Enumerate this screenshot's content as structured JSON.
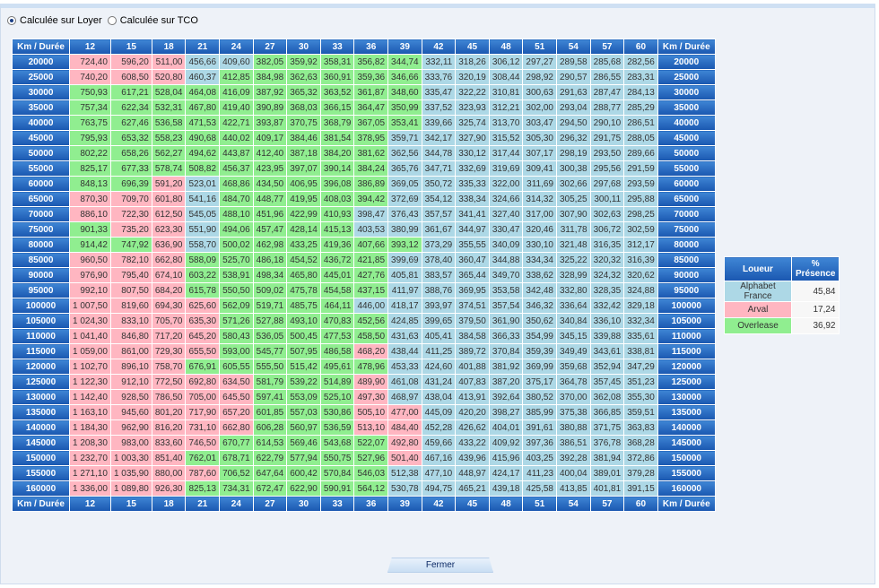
{
  "radios": [
    {
      "label": "Calculée sur Loyer",
      "selected": true
    },
    {
      "label": "Calculée sur TCO",
      "selected": false
    }
  ],
  "table": {
    "corner_label": "Km / Durée",
    "durations": [
      "12",
      "15",
      "18",
      "21",
      "24",
      "27",
      "30",
      "33",
      "36",
      "39",
      "42",
      "45",
      "48",
      "51",
      "54",
      "57",
      "60"
    ],
    "colors": {
      "A": "#add8e6",
      "R": "#ffb6c1",
      "O": "#90ee90"
    },
    "rows": [
      {
        "km": "20000",
        "v": [
          "724,40",
          "596,20",
          "511,00",
          "456,66",
          "409,60",
          "382,05",
          "359,92",
          "358,31",
          "356,82",
          "344,74",
          "332,11",
          "318,26",
          "306,12",
          "297,27",
          "289,58",
          "285,68",
          "282,56"
        ],
        "c": "RRRAAOOOOOAAAAAAA"
      },
      {
        "km": "25000",
        "v": [
          "740,20",
          "608,50",
          "520,80",
          "460,37",
          "412,85",
          "384,98",
          "362,63",
          "360,91",
          "359,36",
          "346,66",
          "333,76",
          "320,19",
          "308,44",
          "298,92",
          "290,57",
          "286,55",
          "283,31"
        ],
        "c": "RRRAOOOOOOAAAAAAA"
      },
      {
        "km": "30000",
        "v": [
          "750,93",
          "617,21",
          "528,04",
          "464,08",
          "416,09",
          "387,92",
          "365,32",
          "363,52",
          "361,87",
          "348,60",
          "335,47",
          "322,22",
          "310,81",
          "300,63",
          "291,63",
          "287,47",
          "284,13"
        ],
        "c": "OOOOOOOOOOAAAAAAA"
      },
      {
        "km": "35000",
        "v": [
          "757,34",
          "622,34",
          "532,31",
          "467,80",
          "419,40",
          "390,89",
          "368,03",
          "366,15",
          "364,47",
          "350,99",
          "337,52",
          "323,93",
          "312,21",
          "302,00",
          "293,04",
          "288,77",
          "285,29"
        ],
        "c": "OOOOOOOOOOAAAAAAA"
      },
      {
        "km": "40000",
        "v": [
          "763,75",
          "627,46",
          "536,58",
          "471,53",
          "422,71",
          "393,87",
          "370,75",
          "368,79",
          "367,05",
          "353,41",
          "339,66",
          "325,74",
          "313,70",
          "303,47",
          "294,50",
          "290,10",
          "286,51"
        ],
        "c": "OOOOOOOOOOAAAAAAA"
      },
      {
        "km": "45000",
        "v": [
          "795,93",
          "653,32",
          "558,23",
          "490,68",
          "440,02",
          "409,17",
          "384,46",
          "381,54",
          "378,95",
          "359,71",
          "342,17",
          "327,90",
          "315,52",
          "305,30",
          "296,32",
          "291,75",
          "288,05"
        ],
        "c": "OOOOOOOOOAAAAAAAA"
      },
      {
        "km": "50000",
        "v": [
          "802,22",
          "658,26",
          "562,27",
          "494,62",
          "443,87",
          "412,40",
          "387,18",
          "384,20",
          "381,62",
          "362,56",
          "344,78",
          "330,12",
          "317,44",
          "307,17",
          "298,19",
          "293,50",
          "289,66"
        ],
        "c": "OOOOOOOOOAAAAAAAA"
      },
      {
        "km": "55000",
        "v": [
          "825,17",
          "677,33",
          "578,74",
          "508,82",
          "456,37",
          "423,95",
          "397,07",
          "390,14",
          "384,24",
          "365,76",
          "347,71",
          "332,69",
          "319,69",
          "309,41",
          "300,38",
          "295,56",
          "291,59"
        ],
        "c": "OOOOOOOOOAAAAAAAA"
      },
      {
        "km": "60000",
        "v": [
          "848,13",
          "696,39",
          "591,20",
          "523,01",
          "468,86",
          "434,50",
          "406,95",
          "396,08",
          "386,89",
          "369,05",
          "350,72",
          "335,33",
          "322,00",
          "311,69",
          "302,66",
          "297,68",
          "293,59"
        ],
        "c": "OORAOOOOOAAAAAAAA"
      },
      {
        "km": "65000",
        "v": [
          "870,30",
          "709,70",
          "601,80",
          "541,16",
          "484,70",
          "448,77",
          "419,95",
          "408,03",
          "394,42",
          "372,69",
          "354,12",
          "338,34",
          "324,66",
          "314,32",
          "305,25",
          "300,11",
          "295,88"
        ],
        "c": "RRRAOOOOOAAAAAAAA"
      },
      {
        "km": "70000",
        "v": [
          "886,10",
          "722,30",
          "612,50",
          "545,05",
          "488,10",
          "451,96",
          "422,99",
          "410,93",
          "398,47",
          "376,43",
          "357,57",
          "341,41",
          "327,40",
          "317,00",
          "307,90",
          "302,63",
          "298,25"
        ],
        "c": "RRRAOOOOAAAAAAAAA"
      },
      {
        "km": "75000",
        "v": [
          "901,33",
          "735,20",
          "623,30",
          "551,90",
          "494,06",
          "457,47",
          "428,14",
          "415,13",
          "403,53",
          "380,99",
          "361,67",
          "344,97",
          "330,47",
          "320,46",
          "311,78",
          "306,72",
          "302,59"
        ],
        "c": "ORRAOOOOAAAAAAAAA"
      },
      {
        "km": "80000",
        "v": [
          "914,42",
          "747,92",
          "636,90",
          "558,70",
          "500,02",
          "462,98",
          "433,25",
          "419,36",
          "407,66",
          "393,12",
          "373,29",
          "355,55",
          "340,09",
          "330,10",
          "321,48",
          "316,35",
          "312,17"
        ],
        "c": "OORAOOOOOOAAAAAAA"
      },
      {
        "km": "85000",
        "v": [
          "960,50",
          "782,10",
          "662,80",
          "588,09",
          "525,70",
          "486,18",
          "454,52",
          "436,72",
          "421,85",
          "399,69",
          "378,40",
          "360,47",
          "344,88",
          "334,34",
          "325,22",
          "320,32",
          "316,39"
        ],
        "c": "RRROOOOOOAAAAAAAA"
      },
      {
        "km": "90000",
        "v": [
          "976,90",
          "795,40",
          "674,10",
          "603,22",
          "538,91",
          "498,34",
          "465,80",
          "445,01",
          "427,76",
          "405,81",
          "383,57",
          "365,44",
          "349,70",
          "338,62",
          "328,99",
          "324,32",
          "320,62"
        ],
        "c": "RRROOOOOOAAAAAAAA"
      },
      {
        "km": "95000",
        "v": [
          "992,10",
          "807,50",
          "684,20",
          "615,78",
          "550,50",
          "509,02",
          "475,78",
          "454,58",
          "437,15",
          "411,97",
          "388,76",
          "369,95",
          "353,58",
          "342,48",
          "332,80",
          "328,35",
          "324,88"
        ],
        "c": "RRROOOOOOAAAAAAAA"
      },
      {
        "km": "100000",
        "v": [
          "1 007,50",
          "819,60",
          "694,30",
          "625,60",
          "562,09",
          "519,71",
          "485,75",
          "464,11",
          "446,00",
          "418,17",
          "393,97",
          "374,51",
          "357,54",
          "346,32",
          "336,64",
          "332,42",
          "329,18"
        ],
        "c": "RRRROOOOAAAAAAAAA"
      },
      {
        "km": "105000",
        "v": [
          "1 024,30",
          "833,10",
          "705,70",
          "635,30",
          "571,26",
          "527,88",
          "493,10",
          "470,83",
          "452,56",
          "424,85",
          "399,65",
          "379,50",
          "361,90",
          "350,62",
          "340,84",
          "336,10",
          "332,34"
        ],
        "c": "RRRROOOOOAAAAAAAA"
      },
      {
        "km": "110000",
        "v": [
          "1 041,40",
          "846,80",
          "717,20",
          "645,20",
          "580,43",
          "536,05",
          "500,45",
          "477,53",
          "458,50",
          "431,63",
          "405,41",
          "384,58",
          "366,33",
          "354,99",
          "345,15",
          "339,88",
          "335,61"
        ],
        "c": "RRRROOOOOAAAAAAAA"
      },
      {
        "km": "115000",
        "v": [
          "1 059,00",
          "861,00",
          "729,30",
          "655,50",
          "593,00",
          "545,77",
          "507,95",
          "486,58",
          "468,20",
          "438,44",
          "411,25",
          "389,72",
          "370,84",
          "359,39",
          "349,49",
          "343,61",
          "338,81"
        ],
        "c": "RRRROOOORAAAAAAAA"
      },
      {
        "km": "120000",
        "v": [
          "1 102,70",
          "896,10",
          "758,70",
          "676,91",
          "605,55",
          "555,50",
          "515,42",
          "495,61",
          "478,96",
          "453,33",
          "424,60",
          "401,88",
          "381,92",
          "369,99",
          "359,68",
          "352,94",
          "347,29"
        ],
        "c": "RRROOOOOOAAAAAAAA"
      },
      {
        "km": "125000",
        "v": [
          "1 122,30",
          "912,10",
          "772,50",
          "692,80",
          "634,50",
          "581,79",
          "539,22",
          "514,89",
          "489,90",
          "461,08",
          "431,24",
          "407,83",
          "387,20",
          "375,17",
          "364,78",
          "357,45",
          "351,23"
        ],
        "c": "RRRRROOORAAAAAAAA"
      },
      {
        "km": "130000",
        "v": [
          "1 142,40",
          "928,50",
          "786,50",
          "705,00",
          "645,50",
          "597,41",
          "553,09",
          "525,10",
          "497,30",
          "468,97",
          "438,04",
          "413,91",
          "392,64",
          "380,52",
          "370,00",
          "362,08",
          "355,30"
        ],
        "c": "RRRRROOORAAAAAAAA"
      },
      {
        "km": "135000",
        "v": [
          "1 163,10",
          "945,60",
          "801,20",
          "717,90",
          "657,20",
          "601,85",
          "557,03",
          "530,86",
          "505,10",
          "477,00",
          "445,09",
          "420,20",
          "398,27",
          "385,99",
          "375,38",
          "366,85",
          "359,51"
        ],
        "c": "RRRRROOORRAAAAAAA"
      },
      {
        "km": "140000",
        "v": [
          "1 184,30",
          "962,90",
          "816,20",
          "731,10",
          "662,80",
          "606,28",
          "560,97",
          "536,59",
          "513,10",
          "484,40",
          "452,28",
          "426,62",
          "404,01",
          "391,61",
          "380,88",
          "371,75",
          "363,83"
        ],
        "c": "RRRRROOORRAAAAAAA"
      },
      {
        "km": "145000",
        "v": [
          "1 208,30",
          "983,00",
          "833,60",
          "746,50",
          "670,77",
          "614,53",
          "569,46",
          "543,68",
          "522,07",
          "492,80",
          "459,66",
          "433,22",
          "409,92",
          "397,36",
          "386,51",
          "376,78",
          "368,28"
        ],
        "c": "RRRROOOOORAAAAAAA"
      },
      {
        "km": "150000",
        "v": [
          "1 232,70",
          "1 003,30",
          "851,40",
          "762,01",
          "678,71",
          "622,79",
          "577,94",
          "550,75",
          "527,96",
          "501,40",
          "467,16",
          "439,96",
          "415,96",
          "403,25",
          "392,28",
          "381,94",
          "372,86"
        ],
        "c": "RRROOOOOORAAAAAAA"
      },
      {
        "km": "155000",
        "v": [
          "1 271,10",
          "1 035,90",
          "880,00",
          "787,60",
          "706,52",
          "647,64",
          "600,42",
          "570,84",
          "546,03",
          "512,38",
          "477,10",
          "448,97",
          "424,17",
          "411,23",
          "400,04",
          "389,01",
          "379,28"
        ],
        "c": "RRRROOOOOAAAAAAAA"
      },
      {
        "km": "160000",
        "v": [
          "1 336,00",
          "1 089,80",
          "926,30",
          "825,13",
          "734,31",
          "672,47",
          "622,90",
          "590,91",
          "564,12",
          "530,78",
          "494,75",
          "465,21",
          "439,18",
          "425,58",
          "413,85",
          "401,81",
          "391,15"
        ],
        "c": "RRROOOOOOAAAAAAAA"
      }
    ]
  },
  "legend": {
    "header_name": "Loueur",
    "header_pct": "% Présence",
    "items": [
      {
        "name": "Alphabet France",
        "pct": "45,84",
        "color": "#add8e6"
      },
      {
        "name": "Arval",
        "pct": "17,24",
        "color": "#ffb6c1"
      },
      {
        "name": "Overlease",
        "pct": "36,92",
        "color": "#90ee90"
      }
    ]
  },
  "footer": {
    "close_label": "Fermer"
  }
}
